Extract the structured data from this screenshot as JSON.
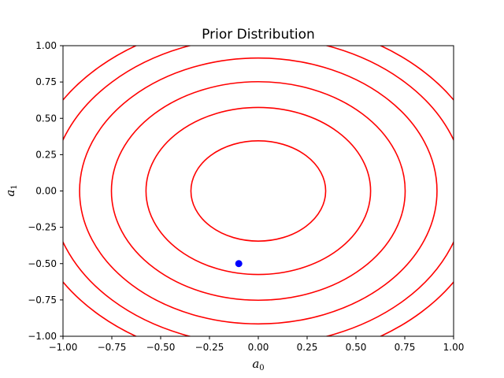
{
  "chart_data": {
    "type": "contour",
    "title": "Prior Distribution",
    "xlabel": {
      "base": "a",
      "sub": "0"
    },
    "ylabel": {
      "base": "a",
      "sub": "1"
    },
    "xlim": [
      -1.0,
      1.0
    ],
    "ylim": [
      -1.0,
      1.0
    ],
    "xticks": [
      "−1.00",
      "−0.75",
      "−0.50",
      "−0.25",
      "0.00",
      "0.25",
      "0.50",
      "0.75",
      "1.00"
    ],
    "yticks": [
      "−1.00",
      "−0.75",
      "−0.50",
      "−0.25",
      "0.00",
      "0.25",
      "0.50",
      "0.75",
      "1.00"
    ],
    "grid": false,
    "contours": {
      "color": "#ff0000",
      "center": [
        0.0,
        0.0
      ],
      "semi_axes": [
        {
          "rx": 0.345,
          "ry": 0.345
        },
        {
          "rx": 0.575,
          "ry": 0.575
        },
        {
          "rx": 0.752,
          "ry": 0.752
        },
        {
          "rx": 0.915,
          "ry": 0.915
        },
        {
          "rx": 1.06,
          "ry": 1.06
        },
        {
          "rx": 1.18,
          "ry": 1.18
        }
      ]
    },
    "points": [
      {
        "x": -0.1,
        "y": -0.5,
        "color": "#0000ff"
      }
    ]
  }
}
